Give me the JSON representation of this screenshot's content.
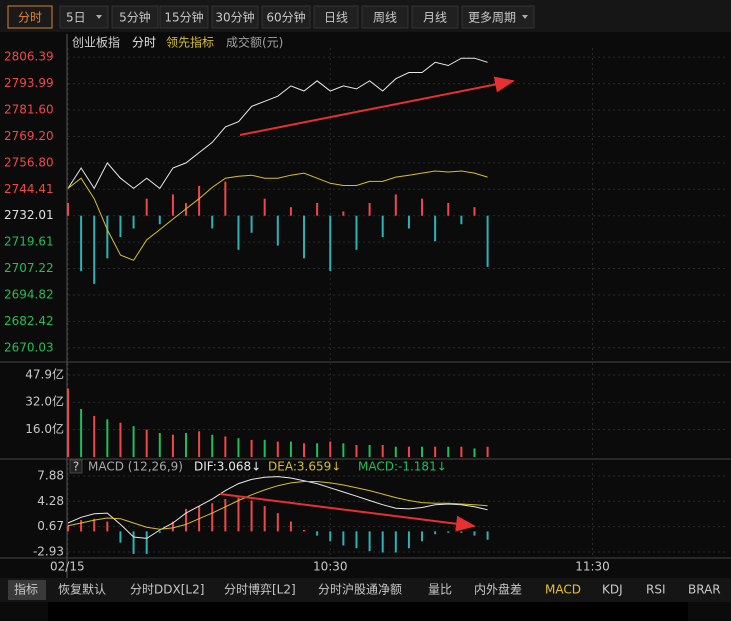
{
  "toolbar": {
    "tabs": [
      "分时",
      "5日",
      "5分钟",
      "15分钟",
      "30分钟",
      "60分钟",
      "日线",
      "周线",
      "月线",
      "更多周期"
    ]
  },
  "chart_data": [
    {
      "type": "line",
      "title": "创业板指",
      "legend_extra": "成交额(元)",
      "x": [
        0,
        3,
        6,
        9,
        12,
        15,
        18,
        21,
        24,
        27,
        30,
        33,
        36,
        39,
        42,
        45,
        48,
        51,
        54,
        57,
        60,
        63,
        66,
        69,
        72,
        75,
        78,
        81,
        84,
        87,
        90,
        93,
        96
      ],
      "xlim": [
        0,
        151
      ],
      "ylim": [
        2664.3,
        2810.7
      ],
      "reference": 2732.01,
      "yticks": [
        2806.39,
        2793.99,
        {
          "value": 2781.6,
          "label": "2781.60"
        },
        {
          "value": 2769.2,
          "label": "2769.20"
        },
        {
          "value": 2756.8,
          "label": "2756.80"
        },
        2744.41,
        2732.01,
        2719.61,
        2707.22,
        2694.82,
        2682.42,
        2670.03
      ],
      "colors": {
        "up": "#f04848",
        "down": "#1fbf5a",
        "flat": "#e0e0e0",
        "bar_down": "#2bb3b8"
      },
      "series": [
        {
          "name": "分时",
          "color": "#e8e8e8",
          "values": [
            2744.8,
            2754.4,
            2744.8,
            2756.8,
            2749.6,
            2744.8,
            2749.6,
            2744.8,
            2754.4,
            2756.8,
            2761.6,
            2766.4,
            2773.7,
            2776.1,
            2783.3,
            2785.7,
            2788.1,
            2792.9,
            2790.5,
            2795.3,
            2790.5,
            2792.9,
            2791.5,
            2795.3,
            2790.5,
            2796.3,
            2799.2,
            2799.2,
            2804.0,
            2802.5,
            2805.9,
            2805.9,
            2804.0
          ]
        },
        {
          "name": "领先指标",
          "color": "#d8c020",
          "values": [
            2744.8,
            2749.6,
            2740.0,
            2725.5,
            2713.5,
            2711.1,
            2720.7,
            2725.5,
            2730.4,
            2735.2,
            2740.0,
            2745.3,
            2749.6,
            2750.5,
            2751.0,
            2749.6,
            2749.6,
            2751.0,
            2752.0,
            2749.6,
            2747.2,
            2746.2,
            2746.2,
            2748.1,
            2748.1,
            2750.1,
            2751.0,
            2752.0,
            2753.0,
            2752.5,
            2753.0,
            2752.0,
            2750.1
          ]
        }
      ],
      "bars": {
        "values": [
          2738,
          2706,
          2700,
          2712,
          2722,
          2726,
          2740,
          2728,
          2742,
          2738,
          2746,
          2726,
          2748,
          2716,
          2724,
          2740,
          2718,
          2736,
          2712,
          2738,
          2706,
          2734,
          2716,
          2738,
          2722,
          2742,
          2726,
          2740,
          2720,
          2738,
          2728,
          2736,
          2708
        ]
      }
    },
    {
      "type": "bar",
      "x": [
        0,
        3,
        6,
        9,
        12,
        15,
        18,
        21,
        24,
        27,
        30,
        33,
        36,
        39,
        42,
        45,
        48,
        51,
        54,
        57,
        60,
        63,
        66,
        69,
        72,
        75,
        78,
        81,
        84,
        87,
        90,
        93,
        96
      ],
      "xlim": [
        0,
        151
      ],
      "ylim": [
        0,
        54.9
      ],
      "yticks": [
        {
          "value": 47.9,
          "label": "47.9亿"
        },
        {
          "value": 32,
          "label": "32.0亿"
        },
        {
          "value": 16,
          "label": "16.0亿"
        }
      ],
      "colors": {
        "up": "#f04848",
        "down": "#1fbf5a"
      },
      "values": [
        40,
        28,
        24,
        22,
        20,
        18,
        16,
        14,
        13,
        14,
        15,
        13,
        12,
        11,
        10,
        10,
        9,
        9,
        8,
        8,
        9,
        8,
        7,
        7,
        7,
        6,
        6,
        6,
        6,
        6,
        6,
        5,
        6
      ]
    },
    {
      "type": "macd",
      "help": "?",
      "title": "MACD (12,26,9)",
      "value_texts": [
        "DIF:3.068↓",
        "DEA:3.659↓",
        "MACD:-1.181↓"
      ],
      "x": [
        0,
        3,
        6,
        9,
        12,
        15,
        18,
        21,
        24,
        27,
        30,
        33,
        36,
        39,
        42,
        45,
        48,
        51,
        54,
        57,
        60,
        63,
        66,
        69,
        72,
        75,
        78,
        81,
        84,
        87,
        90,
        93,
        96
      ],
      "xlim": [
        0,
        151
      ],
      "ylim": [
        -3.5,
        9.87
      ],
      "xticks": [
        {
          "value": 0,
          "label": "02/15"
        },
        {
          "value": 60,
          "label": "10:30"
        },
        {
          "value": 120,
          "label": "11:30"
        }
      ],
      "yticks": [
        7.88,
        4.28,
        0.67,
        -2.93
      ],
      "colors": {
        "up": "#f04848",
        "down": "#2bb3b8"
      },
      "series": [
        {
          "name": "DIF",
          "color": "#e8e8e8",
          "values": [
            1.2,
            2.0,
            2.5,
            2.6,
            1.0,
            -0.8,
            -1.0,
            0.2,
            1.2,
            2.6,
            3.6,
            4.6,
            5.8,
            6.8,
            7.4,
            7.7,
            7.8,
            7.6,
            7.2,
            6.8,
            6.2,
            5.6,
            5.0,
            4.4,
            3.8,
            3.3,
            3.2,
            3.4,
            3.8,
            3.9,
            3.8,
            3.5,
            3.068
          ]
        },
        {
          "name": "DEA",
          "color": "#d8c020",
          "values": [
            0.8,
            1.2,
            1.6,
            1.9,
            1.8,
            1.2,
            0.6,
            0.3,
            0.5,
            1.0,
            1.8,
            2.6,
            3.5,
            4.4,
            5.2,
            5.9,
            6.5,
            6.9,
            7.1,
            7.1,
            6.9,
            6.6,
            6.2,
            5.8,
            5.3,
            4.8,
            4.4,
            4.1,
            4.0,
            4.0,
            3.9,
            3.8,
            3.659
          ]
        }
      ],
      "histogram": {
        "values": [
          0.8,
          1.6,
          1.8,
          1.4,
          -1.6,
          -3.2,
          -3.2,
          -0.2,
          1.4,
          3.2,
          3.6,
          4.0,
          4.6,
          4.8,
          4.4,
          3.6,
          2.6,
          1.4,
          0.2,
          -0.6,
          -1.4,
          -2.0,
          -2.4,
          -2.8,
          -3.0,
          -3.0,
          -2.4,
          -1.4,
          -0.4,
          -0.2,
          -0.2,
          -0.6,
          -1.181
        ]
      }
    }
  ],
  "bottom_tabs": [
    "指标",
    "恢复默认",
    "分时DDX[L2]",
    "分时博弈[L2]",
    "分时沪股通净额",
    "量比",
    "内外盘差",
    "MACD",
    "KDJ",
    "RSI",
    "BRAR"
  ]
}
